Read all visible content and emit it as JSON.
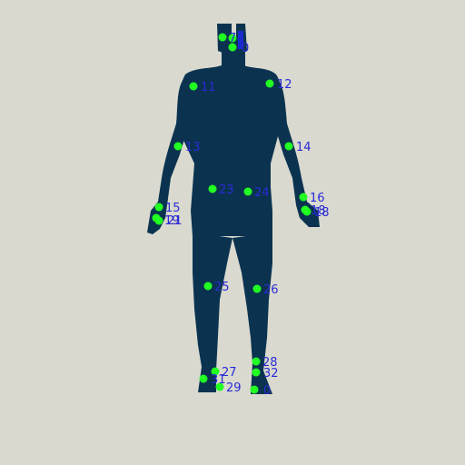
{
  "colors": {
    "background": "#d9d9cf",
    "silhouette": "#0b3350",
    "keypoint": "#22ff22",
    "label": "#2a2ad6"
  },
  "keypoints": [
    {
      "id": "7",
      "label": "7"
    },
    {
      "id": "8",
      "label": ""
    },
    {
      "id": "10",
      "label": "0"
    },
    {
      "id": "11",
      "label": "11"
    },
    {
      "id": "12",
      "label": "12"
    },
    {
      "id": "13",
      "label": "13"
    },
    {
      "id": "14",
      "label": "14"
    },
    {
      "id": "15",
      "label": "15"
    },
    {
      "id": "16",
      "label": "16"
    },
    {
      "id": "17",
      "label": "19"
    },
    {
      "id": "18",
      "label": "21"
    },
    {
      "id": "19",
      "label": "18"
    },
    {
      "id": "20",
      "label": "18"
    },
    {
      "id": "23",
      "label": "23"
    },
    {
      "id": "24",
      "label": "24"
    },
    {
      "id": "25",
      "label": "25"
    },
    {
      "id": "26",
      "label": "26"
    },
    {
      "id": "27",
      "label": "27"
    },
    {
      "id": "28",
      "label": "28"
    },
    {
      "id": "29",
      "label": "29"
    },
    {
      "id": "30",
      "label": "0"
    },
    {
      "id": "31",
      "label": "31"
    },
    {
      "id": "32",
      "label": "32"
    }
  ]
}
